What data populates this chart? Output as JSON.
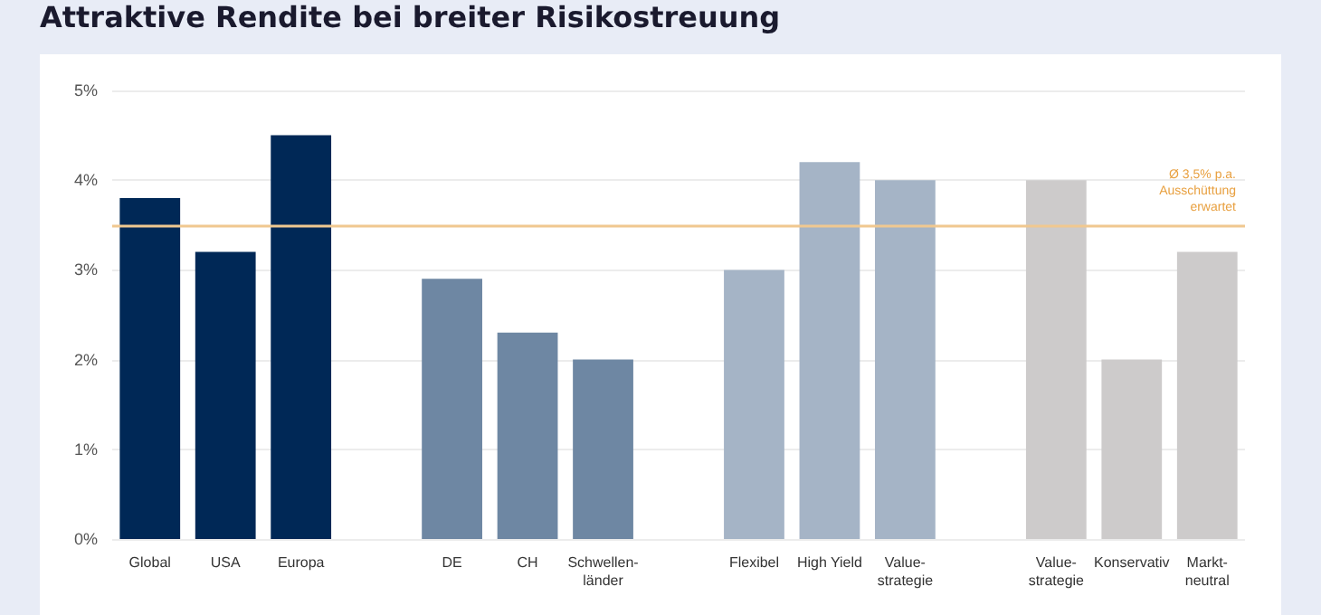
{
  "chart_data": {
    "type": "bar",
    "title": "Attraktive Rendite bei breiter Risikostreuung",
    "categories": [
      "Global",
      "USA",
      "Europa",
      null,
      "DE",
      "CH",
      "Schwellen-\nländer",
      null,
      "Flexibel",
      "High Yield",
      "Value-\nstrategie",
      null,
      "Value-\nstrategie",
      "Konservativ",
      "Markt-\nneutral"
    ],
    "values": [
      3.8,
      3.2,
      4.5,
      null,
      2.9,
      2.3,
      2.0,
      null,
      3.0,
      4.2,
      4.0,
      null,
      4.0,
      2.0,
      3.2
    ],
    "colors": [
      "#002856",
      "#002856",
      "#002856",
      null,
      "#6e87a3",
      "#6e87a3",
      "#6e87a3",
      null,
      "#a5b4c6",
      "#a5b4c6",
      "#a5b4c6",
      null,
      "#cdcbcb",
      "#cdcbcb",
      "#cdcbcb"
    ],
    "ylim": [
      0,
      5
    ],
    "yticks": [
      {
        "value": 0,
        "label": "0%"
      },
      {
        "value": 1,
        "label": "1%"
      },
      {
        "value": 2,
        "label": "2%"
      },
      {
        "value": 3,
        "label": "3%"
      },
      {
        "value": 4,
        "label": "4%"
      },
      {
        "value": 5,
        "label": "5%"
      }
    ],
    "ref_lines": [
      {
        "axis": "y",
        "value": 3.5,
        "label": "Ø 3,5% p.a.\nAusschüttung\nerwartet",
        "color": "#f0c890"
      }
    ],
    "grid": "y"
  }
}
